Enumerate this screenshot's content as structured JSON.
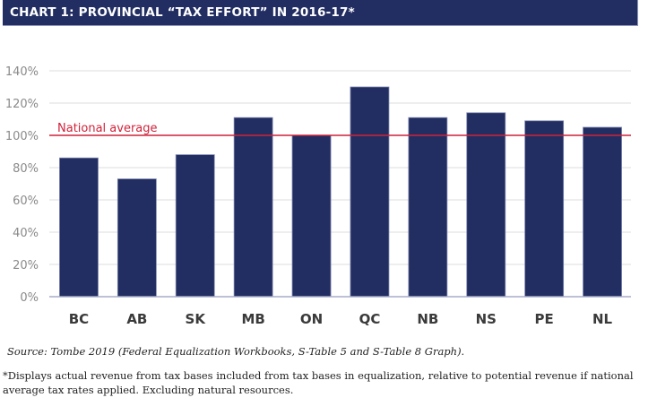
{
  "header": {
    "title": "CHART 1: PROVINCIAL “TAX EFFORT” IN 2016-17*"
  },
  "chart_data": {
    "type": "bar",
    "title": "CHART 1: PROVINCIAL “TAX EFFORT” IN 2016-17*",
    "xlabel": "",
    "ylabel": "",
    "categories": [
      "BC",
      "AB",
      "SK",
      "MB",
      "ON",
      "QC",
      "NB",
      "NS",
      "PE",
      "NL"
    ],
    "values": [
      86,
      73,
      88,
      111,
      100,
      130,
      111,
      114,
      109,
      105
    ],
    "value_unit": "%",
    "ylim": [
      0,
      145
    ],
    "yticks": [
      0,
      20,
      40,
      60,
      80,
      100,
      120,
      140
    ],
    "ytick_labels": [
      "0%",
      "20%",
      "40%",
      "60%",
      "80%",
      "100%",
      "120%",
      "140%"
    ],
    "grid": true,
    "reference_line": {
      "value": 100,
      "label": "National average",
      "color": "#d0223a"
    },
    "bar_color": "#222e62",
    "legend": "none"
  },
  "source": "Source: Tombe 2019 (Federal Equalization Workbooks, S-Table 5 and S-Table 8 Graph).",
  "footnote": "*Displays actual revenue from tax bases included from tax bases in equalization, relative to potential revenue if national average tax rates applied. Excluding natural resources."
}
